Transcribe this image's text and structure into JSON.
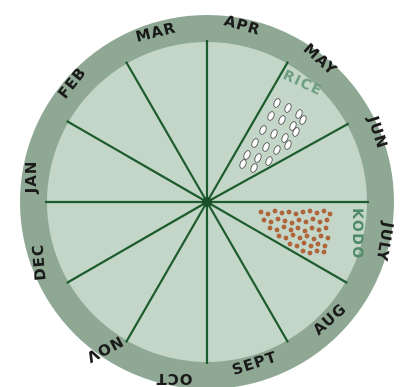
{
  "months": [
    "JAN",
    "FEB",
    "MAR",
    "APR",
    "MAY",
    "JUN",
    "JULY",
    "AUG",
    "SEPT",
    "OCT",
    "NOV",
    "DEC"
  ],
  "crops": {
    "rice": {
      "label": "RICE",
      "color": "#6f9e82",
      "grain_fill": "#ffffff",
      "grain_stroke": "#4a4a4a"
    },
    "kodo": {
      "label": "KODO",
      "color": "#4f8a68",
      "grain_fill": "#b0643a"
    }
  },
  "colors": {
    "rim": "#8ea894",
    "face": "#c3d6c7",
    "spokes": "#1d5c2f",
    "hub": "#184f27"
  }
}
